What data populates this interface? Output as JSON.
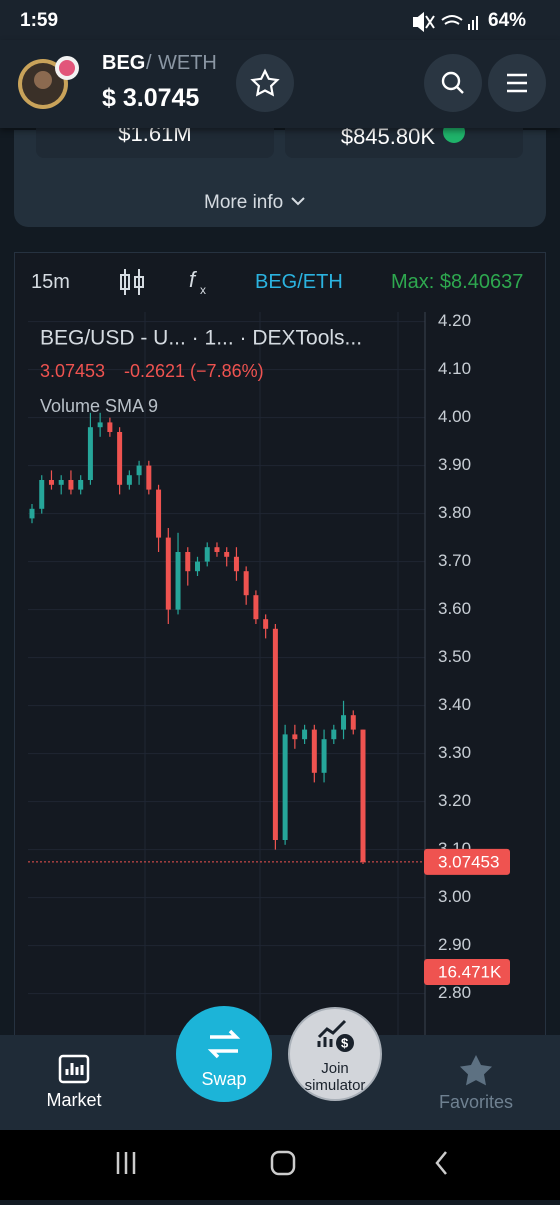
{
  "status_bar": {
    "time": "1:59",
    "battery": "64%"
  },
  "header": {
    "base": "BEG",
    "separator": "/",
    "quote": "WETH",
    "price": "$ 3.0745"
  },
  "stats": {
    "left": "$1.61M",
    "right": "$845.80K"
  },
  "more_info": "More info",
  "toolbar": {
    "interval": "15m",
    "pair": "BEG/ETH",
    "max": "Max: $8.40637"
  },
  "chart_data": {
    "type": "candlestick",
    "title": "BEG/USD - U...  · 1... · DEXTools...",
    "change": "-0.2621 (−7.86%)",
    "indicator": "Volume SMA 9",
    "open": [
      3.79,
      3.81,
      3.87,
      3.86,
      3.87,
      3.85,
      3.87,
      3.98,
      3.99,
      3.97,
      3.86,
      3.88,
      3.9,
      3.85,
      3.75,
      3.6,
      3.72,
      3.68,
      3.7,
      3.73,
      3.72,
      3.71,
      3.68,
      3.63,
      3.58,
      3.56,
      3.12,
      3.34,
      3.33,
      3.35,
      3.26,
      3.33,
      3.35,
      3.38,
      3.35
    ],
    "high": [
      3.82,
      3.88,
      3.89,
      3.88,
      3.89,
      3.88,
      4.01,
      4.01,
      4.0,
      3.98,
      3.89,
      3.91,
      3.91,
      3.86,
      3.77,
      3.76,
      3.73,
      3.71,
      3.74,
      3.74,
      3.73,
      3.73,
      3.69,
      3.64,
      3.59,
      3.57,
      3.36,
      3.36,
      3.36,
      3.36,
      3.35,
      3.36,
      3.41,
      3.39,
      3.35
    ],
    "low": [
      3.78,
      3.8,
      3.85,
      3.84,
      3.84,
      3.84,
      3.86,
      3.96,
      3.96,
      3.84,
      3.85,
      3.86,
      3.84,
      3.72,
      3.57,
      3.59,
      3.65,
      3.67,
      3.69,
      3.71,
      3.69,
      3.66,
      3.61,
      3.57,
      3.54,
      3.1,
      3.11,
      3.31,
      3.32,
      3.24,
      3.24,
      3.32,
      3.33,
      3.34,
      3.07
    ],
    "close": [
      3.81,
      3.87,
      3.86,
      3.87,
      3.85,
      3.87,
      3.98,
      3.99,
      3.97,
      3.86,
      3.88,
      3.9,
      3.85,
      3.75,
      3.6,
      3.72,
      3.68,
      3.7,
      3.73,
      3.72,
      3.71,
      3.68,
      3.63,
      3.58,
      3.56,
      3.12,
      3.34,
      3.33,
      3.35,
      3.26,
      3.33,
      3.35,
      3.38,
      3.35,
      3.07453
    ],
    "up_color": "#26a69a",
    "down_color": "#ef5350",
    "ylim": [
      2.72,
      4.22
    ],
    "yticks": [
      {
        "value": 4.2,
        "label": "4.20"
      },
      {
        "value": 4.1,
        "label": "4.10"
      },
      {
        "value": 4.0,
        "label": "4.00"
      },
      {
        "value": 3.9,
        "label": "3.90"
      },
      {
        "value": 3.8,
        "label": "3.80"
      },
      {
        "value": 3.7,
        "label": "3.70"
      },
      {
        "value": 3.6,
        "label": "3.60"
      },
      {
        "value": 3.5,
        "label": "3.50"
      },
      {
        "value": 3.4,
        "label": "3.40"
      },
      {
        "value": 3.3,
        "label": "3.30"
      },
      {
        "value": 3.2,
        "label": "3.20"
      },
      {
        "value": 3.1,
        "label": "3.10"
      },
      {
        "value": 3.0,
        "label": "3.00"
      },
      {
        "value": 2.9,
        "label": "2.90"
      },
      {
        "value": 2.8,
        "label": "2.80"
      }
    ],
    "grid": true,
    "last_price": 3.07453,
    "volume_label": "16.471K"
  },
  "nav": {
    "market": "Market",
    "swap": "Swap",
    "join": "Join simulator",
    "favorites": "Favorites"
  }
}
